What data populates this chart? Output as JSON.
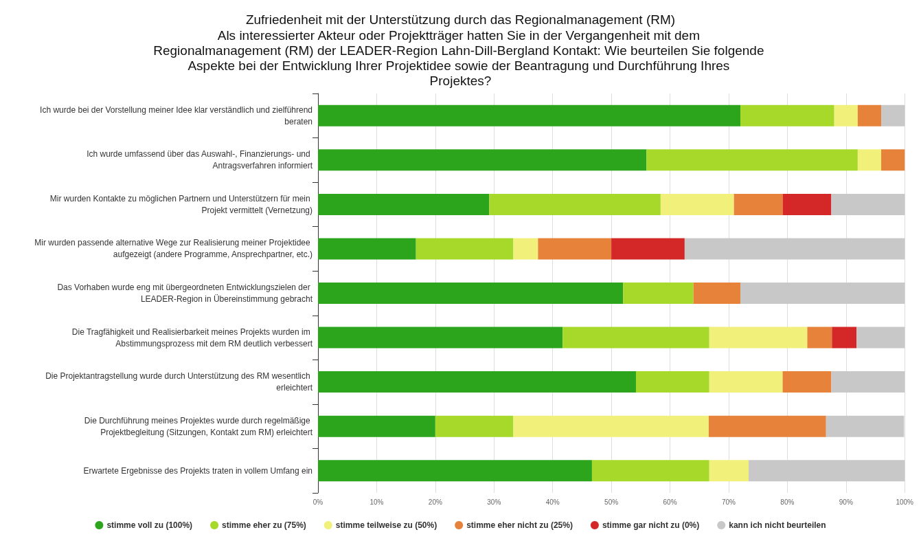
{
  "chart_data": {
    "type": "bar",
    "orientation": "horizontal",
    "stacked": true,
    "title": "Zufriedenheit mit der Unterstützung durch das Regionalmanagement (RM)",
    "subtitle": "Als interessierter Akteur oder Projektträger hatten Sie in der Vergangenheit mit dem Regionalmanagement (RM) der LEADER-Region Lahn-Dill-Bergland Kontakt: Wie beurteilen Sie folgende Aspekte bei der Entwicklung Ihrer Projektidee sowie der Beantragung und Durchführung Ihres Projektes?",
    "categories": [
      "Ich wurde bei der Vorstellung meiner Idee klar verständlich und zielführend beraten",
      "Ich wurde umfassend über das Auswahl-, Finanzierungs- und Antragsverfahren informiert",
      "Mir wurden Kontakte zu möglichen Partnern und Unterstützern für mein Projekt vermittelt (Vernetzung)",
      "Mir wurden passende alternative Wege zur Realisierung meiner Projektidee aufgezeigt (andere Programme, Ansprechpartner, etc.)",
      "Das Vorhaben wurde eng mit übergeordneten Entwicklungszielen der LEADER-Region in Übereinstimmung gebracht",
      "Die Tragfähigkeit und Realisierbarkeit meines Projekts wurden im Abstimmungsprozess mit dem RM deutlich verbessert",
      "Die Projektantragstellung wurde durch Unterstützung des RM wesentlich erleichtert",
      "Die Durchführung meines Projektes wurde durch regelmäßige Projektbegleitung (Sitzungen, Kontakt zum RM) erleichtert",
      "Erwartete Ergebnisse des Projekts traten in vollem Umfang ein"
    ],
    "series": [
      {
        "name": "stimme voll zu (100%)",
        "color": "#2ca51c",
        "values": [
          72,
          56,
          29.2,
          16.7,
          52,
          41.7,
          54.2,
          20,
          46.7
        ]
      },
      {
        "name": "stimme eher zu (75%)",
        "color": "#a6d92a",
        "values": [
          16,
          36,
          29.2,
          16.6,
          12,
          25,
          12.5,
          13.3,
          20
        ]
      },
      {
        "name": "stimme teilweise zu (50%)",
        "color": "#f0f07a",
        "values": [
          4,
          4,
          12.5,
          4.2,
          0,
          16.7,
          12.5,
          33.3,
          6.7
        ]
      },
      {
        "name": "stimme eher nicht zu (25%)",
        "color": "#e6823a",
        "values": [
          4,
          4,
          8.3,
          12.5,
          8,
          4.2,
          8.3,
          20,
          0
        ]
      },
      {
        "name": "stimme gar nicht zu (0%)",
        "color": "#d42828",
        "values": [
          0,
          0,
          8.3,
          12.5,
          0,
          4.2,
          0,
          0,
          0
        ]
      },
      {
        "name": "kann ich nicht beurteilen",
        "color": "#c8c8c8",
        "values": [
          4,
          0,
          12.5,
          37.5,
          28,
          8.2,
          12.5,
          13.3,
          26.6
        ]
      }
    ],
    "xlim": [
      0,
      100
    ],
    "xticks": [
      {
        "value": 0,
        "label": "0%"
      },
      {
        "value": 10,
        "label": "10%"
      },
      {
        "value": 20,
        "label": "20%"
      },
      {
        "value": 30,
        "label": "30%"
      },
      {
        "value": 40,
        "label": "40%"
      },
      {
        "value": 50,
        "label": "50%"
      },
      {
        "value": 60,
        "label": "60%"
      },
      {
        "value": 70,
        "label": "70%"
      },
      {
        "value": 80,
        "label": "80%"
      },
      {
        "value": 90,
        "label": "90%"
      },
      {
        "value": 100,
        "label": "100%"
      }
    ],
    "grid": "x",
    "legend": "bottom",
    "marker": "circle"
  }
}
